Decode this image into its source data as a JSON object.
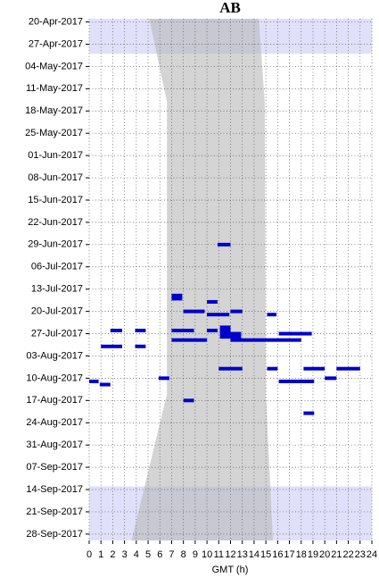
{
  "chart_data": {
    "type": "timeline",
    "title": "AB",
    "x_label": "GMT (h)",
    "xlim": [
      0,
      24
    ],
    "xticks": [
      0,
      1,
      2,
      3,
      4,
      5,
      6,
      7,
      8,
      9,
      10,
      11,
      12,
      13,
      14,
      15,
      16,
      17,
      18,
      19,
      20,
      21,
      22,
      23,
      24
    ],
    "ylim": [
      "19-Apr-2017",
      "30-Sep-2017"
    ],
    "yticks": [
      "20-Apr-2017",
      "27-Apr-2017",
      "04-May-2017",
      "11-May-2017",
      "18-May-2017",
      "25-May-2017",
      "01-Jun-2017",
      "08-Jun-2017",
      "15-Jun-2017",
      "22-Jun-2017",
      "29-Jun-2017",
      "06-Jul-2017",
      "13-Jul-2017",
      "20-Jul-2017",
      "27-Jul-2017",
      "03-Aug-2017",
      "10-Aug-2017",
      "17-Aug-2017",
      "24-Aug-2017",
      "31-Aug-2017",
      "07-Sep-2017",
      "14-Sep-2017",
      "21-Sep-2017",
      "28-Sep-2017"
    ],
    "grid": true,
    "color": "#0000cc",
    "highlight_color": "#e0e0fa",
    "highlight_ranges": [
      {
        "from": "19-Apr-2017",
        "to": "30-Apr-2017"
      },
      {
        "from": "13-Sep-2017",
        "to": "30-Sep-2017"
      }
    ],
    "shade_color": "#b8b8b8",
    "shaded_region": {
      "dates": [
        "19-Apr-2017",
        "15-May-2017",
        "15-Aug-2017",
        "30-Sep-2017"
      ],
      "start": [
        5.1,
        6.6,
        6.6,
        3.6
      ],
      "end": [
        14.4,
        14.9,
        15.0,
        15.6
      ]
    },
    "segments": [
      {
        "date": "29-Jun-2017",
        "start": 10.9,
        "end": 12.0
      },
      {
        "date": "15-Jul-2017",
        "start": 7.0,
        "end": 7.9
      },
      {
        "date": "16-Jul-2017",
        "start": 7.0,
        "end": 7.9
      },
      {
        "date": "17-Jul-2017",
        "start": 10.0,
        "end": 10.9
      },
      {
        "date": "20-Jul-2017",
        "start": 8.0,
        "end": 9.8
      },
      {
        "date": "21-Jul-2017",
        "start": 10.0,
        "end": 11.9
      },
      {
        "date": "20-Jul-2017",
        "start": 12.0,
        "end": 13.0
      },
      {
        "date": "21-Jul-2017",
        "start": 15.1,
        "end": 15.9
      },
      {
        "date": "26-Jul-2017",
        "start": 1.8,
        "end": 2.8
      },
      {
        "date": "26-Jul-2017",
        "start": 3.9,
        "end": 4.8
      },
      {
        "date": "26-Jul-2017",
        "start": 7.0,
        "end": 8.9
      },
      {
        "date": "26-Jul-2017",
        "start": 10.0,
        "end": 10.9
      },
      {
        "date": "25-Jul-2017",
        "start": 11.1,
        "end": 12.0
      },
      {
        "date": "26-Jul-2017",
        "start": 11.1,
        "end": 12.0
      },
      {
        "date": "27-Jul-2017",
        "start": 11.1,
        "end": 12.0
      },
      {
        "date": "28-Jul-2017",
        "start": 11.1,
        "end": 12.0
      },
      {
        "date": "27-Jul-2017",
        "start": 12.0,
        "end": 12.9
      },
      {
        "date": "28-Jul-2017",
        "start": 12.0,
        "end": 12.9
      },
      {
        "date": "27-Jul-2017",
        "start": 16.1,
        "end": 18.9
      },
      {
        "date": "29-Jul-2017",
        "start": 7.0,
        "end": 10.0
      },
      {
        "date": "29-Jul-2017",
        "start": 12.0,
        "end": 18.0
      },
      {
        "date": "31-Jul-2017",
        "start": 1.0,
        "end": 2.8
      },
      {
        "date": "31-Jul-2017",
        "start": 3.9,
        "end": 4.8
      },
      {
        "date": "07-Aug-2017",
        "start": 11.0,
        "end": 13.0
      },
      {
        "date": "07-Aug-2017",
        "start": 15.1,
        "end": 16.0
      },
      {
        "date": "07-Aug-2017",
        "start": 18.2,
        "end": 20.0
      },
      {
        "date": "07-Aug-2017",
        "start": 21.0,
        "end": 23.0
      },
      {
        "date": "10-Aug-2017",
        "start": 5.9,
        "end": 6.8
      },
      {
        "date": "11-Aug-2017",
        "start": 0.0,
        "end": 0.8
      },
      {
        "date": "12-Aug-2017",
        "start": 0.9,
        "end": 1.8
      },
      {
        "date": "11-Aug-2017",
        "start": 16.1,
        "end": 19.1
      },
      {
        "date": "10-Aug-2017",
        "start": 20.0,
        "end": 21.0
      },
      {
        "date": "17-Aug-2017",
        "start": 8.0,
        "end": 8.9
      },
      {
        "date": "21-Aug-2017",
        "start": 18.2,
        "end": 19.1
      }
    ]
  }
}
